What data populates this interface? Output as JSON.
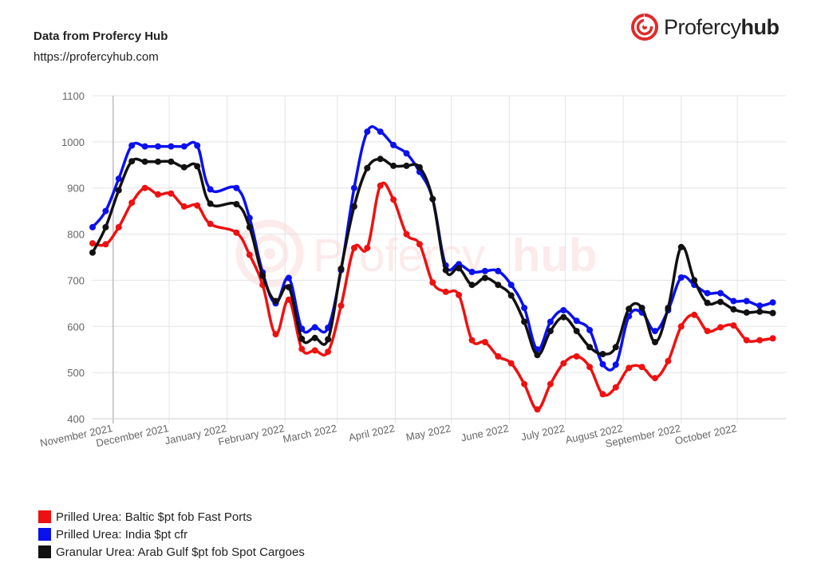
{
  "header": {
    "title": "Data from Profercy Hub",
    "url": "https://profercyhub.com"
  },
  "brand": {
    "name_light": "Profercy",
    "name_bold": "hub",
    "color": "#e02b2b"
  },
  "chart_data": {
    "type": "line",
    "title": "",
    "xlabel": "",
    "ylabel": "",
    "ylim": [
      400,
      1100
    ],
    "yticks": [
      400,
      500,
      600,
      700,
      800,
      900,
      1000,
      1100
    ],
    "grid": true,
    "legend_position": "bottom-left",
    "xlim": [
      "2021-10-21",
      "2022-10-27"
    ],
    "x_tick_labels": [
      {
        "label": "November 2021",
        "date": "2021-11-01"
      },
      {
        "label": "December 2021",
        "date": "2021-12-01"
      },
      {
        "label": "January 2022",
        "date": "2022-01-01"
      },
      {
        "label": "February 2022",
        "date": "2022-02-01"
      },
      {
        "label": "March 2022",
        "date": "2022-03-01"
      },
      {
        "label": "April 2022",
        "date": "2022-04-01"
      },
      {
        "label": "May 2022",
        "date": "2022-05-01"
      },
      {
        "label": "June 2022",
        "date": "2022-06-01"
      },
      {
        "label": "July 2022",
        "date": "2022-07-01"
      },
      {
        "label": "August 2022",
        "date": "2022-08-01"
      },
      {
        "label": "September 2022",
        "date": "2022-09-01"
      },
      {
        "label": "October 2022",
        "date": "2022-10-01"
      }
    ],
    "series": [
      {
        "name": "Prilled Urea: Baltic $pt fob Fast Ports",
        "color": "#ee1111",
        "points": [
          [
            "2021-10-21",
            780
          ],
          [
            "2021-10-28",
            778
          ],
          [
            "2021-11-04",
            815
          ],
          [
            "2021-11-11",
            868
          ],
          [
            "2021-11-18",
            900
          ],
          [
            "2021-11-25",
            886
          ],
          [
            "2021-12-02",
            888
          ],
          [
            "2021-12-09",
            860
          ],
          [
            "2021-12-16",
            862
          ],
          [
            "2021-12-23",
            822
          ],
          [
            "2022-01-06",
            803
          ],
          [
            "2022-01-13",
            755
          ],
          [
            "2022-01-20",
            690
          ],
          [
            "2022-01-27",
            583
          ],
          [
            "2022-02-03",
            658
          ],
          [
            "2022-02-10",
            551
          ],
          [
            "2022-02-17",
            548
          ],
          [
            "2022-02-24",
            545
          ],
          [
            "2022-03-03",
            645
          ],
          [
            "2022-03-10",
            770
          ],
          [
            "2022-03-17",
            770
          ],
          [
            "2022-03-24",
            905
          ],
          [
            "2022-03-31",
            875
          ],
          [
            "2022-04-07",
            800
          ],
          [
            "2022-04-14",
            778
          ],
          [
            "2022-04-21",
            695
          ],
          [
            "2022-04-28",
            675
          ],
          [
            "2022-05-05",
            668
          ],
          [
            "2022-05-12",
            570
          ],
          [
            "2022-05-19",
            566
          ],
          [
            "2022-05-26",
            535
          ],
          [
            "2022-06-02",
            520
          ],
          [
            "2022-06-09",
            475
          ],
          [
            "2022-06-16",
            420
          ],
          [
            "2022-06-23",
            475
          ],
          [
            "2022-06-30",
            520
          ],
          [
            "2022-07-07",
            535
          ],
          [
            "2022-07-14",
            512
          ],
          [
            "2022-07-21",
            453
          ],
          [
            "2022-07-28",
            468
          ],
          [
            "2022-08-04",
            510
          ],
          [
            "2022-08-11",
            512
          ],
          [
            "2022-08-18",
            488
          ],
          [
            "2022-08-25",
            525
          ],
          [
            "2022-09-01",
            600
          ],
          [
            "2022-09-08",
            625
          ],
          [
            "2022-09-15",
            590
          ],
          [
            "2022-09-22",
            598
          ],
          [
            "2022-09-29",
            602
          ],
          [
            "2022-10-06",
            570
          ],
          [
            "2022-10-13",
            570
          ],
          [
            "2022-10-20",
            574
          ]
        ]
      },
      {
        "name": "Prilled Urea: India $pt cfr",
        "color": "#0a10ee",
        "points": [
          [
            "2021-10-21",
            815
          ],
          [
            "2021-10-28",
            850
          ],
          [
            "2021-11-04",
            920
          ],
          [
            "2021-11-11",
            992
          ],
          [
            "2021-11-18",
            990
          ],
          [
            "2021-11-25",
            990
          ],
          [
            "2021-12-02",
            990
          ],
          [
            "2021-12-09",
            990
          ],
          [
            "2021-12-16",
            992
          ],
          [
            "2021-12-23",
            897
          ],
          [
            "2022-01-06",
            900
          ],
          [
            "2022-01-13",
            835
          ],
          [
            "2022-01-20",
            717
          ],
          [
            "2022-01-27",
            650
          ],
          [
            "2022-02-03",
            705
          ],
          [
            "2022-02-10",
            595
          ],
          [
            "2022-02-17",
            598
          ],
          [
            "2022-02-24",
            597
          ],
          [
            "2022-03-03",
            722
          ],
          [
            "2022-03-10",
            900
          ],
          [
            "2022-03-17",
            1022
          ],
          [
            "2022-03-24",
            1022
          ],
          [
            "2022-03-31",
            993
          ],
          [
            "2022-04-07",
            975
          ],
          [
            "2022-04-14",
            935
          ],
          [
            "2022-04-21",
            876
          ],
          [
            "2022-04-28",
            732
          ],
          [
            "2022-05-05",
            735
          ],
          [
            "2022-05-12",
            718
          ],
          [
            "2022-05-19",
            720
          ],
          [
            "2022-05-26",
            720
          ],
          [
            "2022-06-02",
            690
          ],
          [
            "2022-06-09",
            640
          ],
          [
            "2022-06-16",
            550
          ],
          [
            "2022-06-23",
            610
          ],
          [
            "2022-06-30",
            635
          ],
          [
            "2022-07-07",
            612
          ],
          [
            "2022-07-14",
            592
          ],
          [
            "2022-07-21",
            518
          ],
          [
            "2022-07-28",
            517
          ],
          [
            "2022-08-04",
            622
          ],
          [
            "2022-08-11",
            630
          ],
          [
            "2022-08-18",
            590
          ],
          [
            "2022-08-25",
            635
          ],
          [
            "2022-09-01",
            706
          ],
          [
            "2022-09-08",
            690
          ],
          [
            "2022-09-15",
            672
          ],
          [
            "2022-09-22",
            672
          ],
          [
            "2022-09-29",
            655
          ],
          [
            "2022-10-06",
            655
          ],
          [
            "2022-10-13",
            645
          ],
          [
            "2022-10-20",
            652
          ]
        ]
      },
      {
        "name": "Granular Urea: Arab Gulf $pt fob Spot Cargoes",
        "color": "#111111",
        "points": [
          [
            "2021-10-21",
            760
          ],
          [
            "2021-10-28",
            815
          ],
          [
            "2021-11-04",
            895
          ],
          [
            "2021-11-11",
            958
          ],
          [
            "2021-11-18",
            957
          ],
          [
            "2021-11-25",
            957
          ],
          [
            "2021-12-02",
            957
          ],
          [
            "2021-12-09",
            945
          ],
          [
            "2021-12-16",
            947
          ],
          [
            "2021-12-23",
            866
          ],
          [
            "2022-01-06",
            865
          ],
          [
            "2022-01-13",
            815
          ],
          [
            "2022-01-20",
            710
          ],
          [
            "2022-01-27",
            655
          ],
          [
            "2022-02-03",
            685
          ],
          [
            "2022-02-10",
            573
          ],
          [
            "2022-02-17",
            575
          ],
          [
            "2022-02-24",
            572
          ],
          [
            "2022-03-03",
            725
          ],
          [
            "2022-03-10",
            860
          ],
          [
            "2022-03-17",
            943
          ],
          [
            "2022-03-24",
            963
          ],
          [
            "2022-03-31",
            948
          ],
          [
            "2022-04-07",
            948
          ],
          [
            "2022-04-14",
            945
          ],
          [
            "2022-04-21",
            876
          ],
          [
            "2022-04-28",
            722
          ],
          [
            "2022-05-05",
            726
          ],
          [
            "2022-05-12",
            690
          ],
          [
            "2022-05-19",
            705
          ],
          [
            "2022-05-26",
            690
          ],
          [
            "2022-06-02",
            667
          ],
          [
            "2022-06-09",
            610
          ],
          [
            "2022-06-16",
            538
          ],
          [
            "2022-06-23",
            590
          ],
          [
            "2022-06-30",
            620
          ],
          [
            "2022-07-07",
            590
          ],
          [
            "2022-07-14",
            555
          ],
          [
            "2022-07-21",
            540
          ],
          [
            "2022-07-28",
            555
          ],
          [
            "2022-08-04",
            638
          ],
          [
            "2022-08-11",
            640
          ],
          [
            "2022-08-18",
            566
          ],
          [
            "2022-08-25",
            640
          ],
          [
            "2022-09-01",
            772
          ],
          [
            "2022-09-08",
            700
          ],
          [
            "2022-09-15",
            651
          ],
          [
            "2022-09-22",
            653
          ],
          [
            "2022-09-29",
            637
          ],
          [
            "2022-10-06",
            630
          ],
          [
            "2022-10-13",
            632
          ],
          [
            "2022-10-20",
            629
          ]
        ]
      }
    ]
  }
}
